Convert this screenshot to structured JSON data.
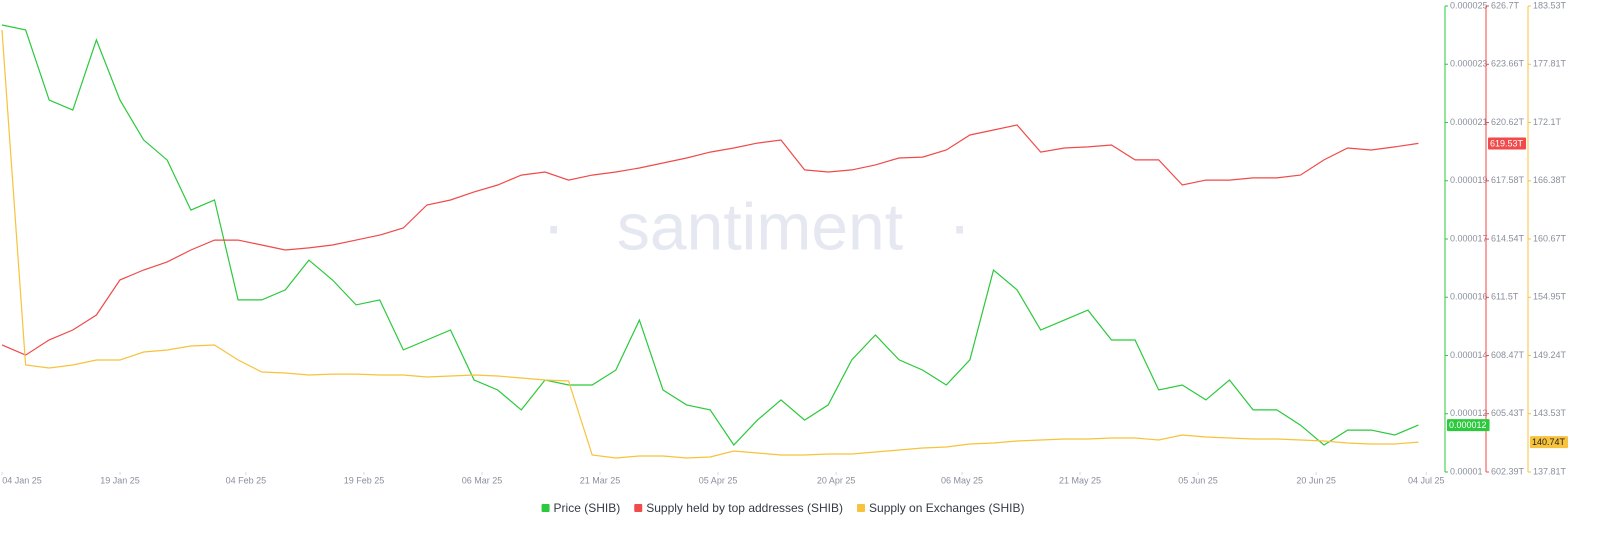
{
  "chart_data": {
    "type": "line",
    "watermark": "santiment",
    "x": [
      "2025-01-04",
      "2025-01-07",
      "2025-01-10",
      "2025-01-13",
      "2025-01-16",
      "2025-01-19",
      "2025-01-22",
      "2025-01-25",
      "2025-01-28",
      "2025-01-31",
      "2025-02-03",
      "2025-02-06",
      "2025-02-09",
      "2025-02-12",
      "2025-02-15",
      "2025-02-18",
      "2025-02-21",
      "2025-02-24",
      "2025-02-27",
      "2025-03-02",
      "2025-03-05",
      "2025-03-08",
      "2025-03-11",
      "2025-03-14",
      "2025-03-17",
      "2025-03-20",
      "2025-03-23",
      "2025-03-26",
      "2025-03-29",
      "2025-04-01",
      "2025-04-04",
      "2025-04-07",
      "2025-04-10",
      "2025-04-13",
      "2025-04-16",
      "2025-04-19",
      "2025-04-22",
      "2025-04-25",
      "2025-04-28",
      "2025-05-01",
      "2025-05-04",
      "2025-05-07",
      "2025-05-10",
      "2025-05-13",
      "2025-05-16",
      "2025-05-19",
      "2025-05-22",
      "2025-05-25",
      "2025-05-28",
      "2025-05-31",
      "2025-06-03",
      "2025-06-06",
      "2025-06-09",
      "2025-06-12",
      "2025-06-15",
      "2025-06-18",
      "2025-06-21",
      "2025-06-24",
      "2025-06-27",
      "2025-06-30",
      "2025-07-03"
    ],
    "xlim": [
      "2025-01-04",
      "2025-07-06"
    ],
    "xticks": [
      {
        "value": "2025-01-04",
        "label": "04 Jan 25"
      },
      {
        "value": "2025-01-19",
        "label": "19 Jan 25"
      },
      {
        "value": "2025-02-04",
        "label": "04 Feb 25"
      },
      {
        "value": "2025-02-19",
        "label": "19 Feb 25"
      },
      {
        "value": "2025-03-06",
        "label": "06 Mar 25"
      },
      {
        "value": "2025-03-21",
        "label": "21 Mar 25"
      },
      {
        "value": "2025-04-05",
        "label": "05 Apr 25"
      },
      {
        "value": "2025-04-20",
        "label": "20 Apr 25"
      },
      {
        "value": "2025-05-06",
        "label": "06 May 25"
      },
      {
        "value": "2025-05-21",
        "label": "21 May 25"
      },
      {
        "value": "2025-06-05",
        "label": "05 Jun 25"
      },
      {
        "value": "2025-06-20",
        "label": "20 Jun 25"
      },
      {
        "value": "2025-07-04",
        "label": "04 Jul 25"
      }
    ],
    "ylim": [
      1e-05,
      2.5e-05
    ],
    "yticks": [
      1e-05,
      {
        "value": 1.1875e-05,
        "label": "0.000012"
      },
      {
        "value": 1.375e-05,
        "label": "0.000014"
      },
      {
        "value": 1.5625e-05,
        "label": "0.000016"
      },
      {
        "value": 1.75e-05,
        "label": "0.000017"
      },
      {
        "value": 1.9375e-05,
        "label": "0.000019"
      },
      {
        "value": 2.125e-05,
        "label": "0.000021"
      },
      {
        "value": 2.3125e-05,
        "label": "0.000023"
      },
      2.5e-05
    ],
    "y2lim": [
      602.39,
      626.7
    ],
    "y2ticks": [
      {
        "value": 602.39,
        "label": "602.39T"
      },
      {
        "value": 605.43,
        "label": "605.43T"
      },
      {
        "value": 608.47,
        "label": "608.47T"
      },
      {
        "value": 611.5,
        "label": "611.5T"
      },
      {
        "value": 614.54,
        "label": "614.54T"
      },
      {
        "value": 617.58,
        "label": "617.58T"
      },
      {
        "value": 620.62,
        "label": "620.62T"
      },
      {
        "value": 623.66,
        "label": "623.66T"
      },
      {
        "value": 626.7,
        "label": "626.7T"
      }
    ],
    "y3lim": [
      137.81,
      183.53
    ],
    "y3ticks": [
      {
        "value": 137.81,
        "label": "137.81T"
      },
      {
        "value": 143.53,
        "label": "143.53T"
      },
      {
        "value": 149.24,
        "label": "149.24T"
      },
      {
        "value": 154.95,
        "label": "154.95T"
      },
      {
        "value": 160.67,
        "label": "160.67T"
      },
      {
        "value": 166.38,
        "label": "166.38T"
      },
      {
        "value": 172.1,
        "label": "172.1T"
      },
      {
        "value": 177.81,
        "label": "177.81T"
      },
      {
        "value": 183.53,
        "label": "183.53T"
      }
    ],
    "series": [
      {
        "name": "Price (SHIB)",
        "color": "#2bc93c",
        "axis": "y",
        "last_label": "0.000012",
        "values": [
          2.439e-05,
          2.423e-05,
          2.197e-05,
          2.165e-05,
          2.391e-05,
          2.197e-05,
          2.069e-05,
          2.004e-05,
          1.843e-05,
          1.876e-05,
          1.554e-05,
          1.554e-05,
          1.586e-05,
          1.682e-05,
          1.618e-05,
          1.538e-05,
          1.554e-05,
          1.393e-05,
          1.425e-05,
          1.457e-05,
          1.296e-05,
          1.264e-05,
          1.2e-05,
          1.296e-05,
          1.28e-05,
          1.28e-05,
          1.328e-05,
          1.489e-05,
          1.264e-05,
          1.216e-05,
          1.2e-05,
          1.087e-05,
          1.167e-05,
          1.232e-05,
          1.167e-05,
          1.216e-05,
          1.361e-05,
          1.441e-05,
          1.361e-05,
          1.328e-05,
          1.28e-05,
          1.361e-05,
          1.65e-05,
          1.586e-05,
          1.457e-05,
          1.489e-05,
          1.521e-05,
          1.425e-05,
          1.425e-05,
          1.264e-05,
          1.28e-05,
          1.232e-05,
          1.296e-05,
          1.2e-05,
          1.2e-05,
          1.151e-05,
          1.087e-05,
          1.135e-05,
          1.135e-05,
          1.119e-05,
          1.151e-05
        ]
      },
      {
        "name": "Supply held by top addresses (SHIB)",
        "color": "#f04a4a",
        "axis": "y2",
        "last_label": "619.53T",
        "values": [
          609.02,
          608.49,
          609.28,
          609.8,
          610.58,
          612.41,
          612.93,
          613.35,
          613.97,
          614.49,
          614.49,
          614.23,
          613.97,
          614.08,
          614.23,
          614.49,
          614.75,
          615.12,
          616.32,
          616.58,
          617.0,
          617.36,
          617.88,
          618.04,
          617.62,
          617.88,
          618.04,
          618.25,
          618.51,
          618.77,
          619.08,
          619.29,
          619.55,
          619.71,
          618.15,
          618.04,
          618.15,
          618.41,
          618.77,
          618.82,
          619.19,
          619.97,
          620.23,
          620.49,
          619.08,
          619.29,
          619.35,
          619.45,
          618.67,
          618.67,
          617.36,
          617.62,
          617.62,
          617.73,
          617.73,
          617.88,
          618.67,
          619.29,
          619.19,
          619.35,
          619.53
        ]
      },
      {
        "name": "Supply on Exchanges (SHIB)",
        "color": "#f7c23c",
        "axis": "y3",
        "last_label": "140.74T",
        "values": [
          181.17,
          148.31,
          148.01,
          148.31,
          148.8,
          148.8,
          149.58,
          149.78,
          150.17,
          150.27,
          148.8,
          147.62,
          147.52,
          147.33,
          147.42,
          147.42,
          147.33,
          147.33,
          147.13,
          147.23,
          147.33,
          147.23,
          147.03,
          146.84,
          146.74,
          139.48,
          139.18,
          139.38,
          139.38,
          139.18,
          139.28,
          139.87,
          139.67,
          139.48,
          139.48,
          139.58,
          139.58,
          139.77,
          139.97,
          140.16,
          140.26,
          140.56,
          140.66,
          140.85,
          140.95,
          141.05,
          141.05,
          141.15,
          141.15,
          140.95,
          141.44,
          141.24,
          141.15,
          141.05,
          141.05,
          140.95,
          140.85,
          140.66,
          140.56,
          140.56,
          140.74
        ]
      }
    ]
  }
}
